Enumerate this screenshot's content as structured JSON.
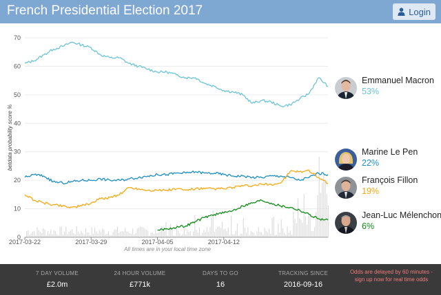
{
  "header": {
    "title": "French Presidential Election 2017",
    "login_label": "Login"
  },
  "chart_note": "All times are in your local time zone",
  "candidates": [
    {
      "name": "Emmanuel Macron",
      "pct": "53%",
      "color": "#6cc4d8",
      "photo": "macron-photo"
    },
    {
      "name": "Marine Le Pen",
      "pct": "22%",
      "color": "#1b8ec0",
      "photo": "le-pen-photo"
    },
    {
      "name": "François Fillon",
      "pct": "19%",
      "color": "#f5a911",
      "photo": "fillon-photo"
    },
    {
      "name": "Jean-Luc Mélenchon",
      "pct": "6%",
      "color": "#0f8a18",
      "photo": "melenchon-photo"
    }
  ],
  "stats": [
    {
      "label": "7 DAY VOLUME",
      "value": "£2.0m"
    },
    {
      "label": "24 HOUR VOLUME",
      "value": "£771k"
    },
    {
      "label": "DAYS TO GO",
      "value": "16"
    },
    {
      "label": "TRACKING SINCE",
      "value": "2016-09-16"
    }
  ],
  "delay_note": "Odds are delayed by 60 minutes - sign up now for real time odds",
  "chart_data": {
    "type": "line",
    "title": "",
    "ylabel": "betdata probability score %",
    "ylim": [
      0,
      70
    ],
    "yticks": [
      0,
      10,
      20,
      30,
      40,
      50,
      60,
      70
    ],
    "x_start": "2017-03-22",
    "x_end": "2017-04-23",
    "xticks": [
      "2017-03-22",
      "2017-03-29",
      "2017-04-05",
      "2017-04-12"
    ],
    "grid": true,
    "volume_bars": true,
    "series": [
      {
        "name": "Emmanuel Macron",
        "color": "#6cc4d8",
        "points": [
          [
            "2017-03-22",
            61
          ],
          [
            "2017-03-23",
            62
          ],
          [
            "2017-03-24",
            64
          ],
          [
            "2017-03-25",
            66
          ],
          [
            "2017-03-26",
            67
          ],
          [
            "2017-03-27",
            68.5
          ],
          [
            "2017-03-28",
            67.5
          ],
          [
            "2017-03-29",
            66.5
          ],
          [
            "2017-03-30",
            64
          ],
          [
            "2017-03-31",
            63
          ],
          [
            "2017-04-01",
            63
          ],
          [
            "2017-04-02",
            61
          ],
          [
            "2017-04-03",
            60
          ],
          [
            "2017-04-04",
            59
          ],
          [
            "2017-04-05",
            58
          ],
          [
            "2017-04-06",
            58
          ],
          [
            "2017-04-07",
            57
          ],
          [
            "2017-04-08",
            56
          ],
          [
            "2017-04-09",
            56
          ],
          [
            "2017-04-10",
            54
          ],
          [
            "2017-04-11",
            53
          ],
          [
            "2017-04-12",
            51.5
          ],
          [
            "2017-04-13",
            51
          ],
          [
            "2017-04-14",
            50
          ],
          [
            "2017-04-15",
            47
          ],
          [
            "2017-04-16",
            48
          ],
          [
            "2017-04-17",
            47.5
          ],
          [
            "2017-04-18",
            46
          ],
          [
            "2017-04-19",
            46.5
          ],
          [
            "2017-04-20",
            48.5
          ],
          [
            "2017-04-21",
            50.5
          ],
          [
            "2017-04-22",
            56
          ],
          [
            "2017-04-23",
            53
          ]
        ]
      },
      {
        "name": "Marine Le Pen",
        "color": "#1b8ec0",
        "points": [
          [
            "2017-03-22",
            21
          ],
          [
            "2017-03-23",
            22
          ],
          [
            "2017-03-24",
            21.5
          ],
          [
            "2017-03-25",
            19.5
          ],
          [
            "2017-03-26",
            19
          ],
          [
            "2017-03-27",
            19.5
          ],
          [
            "2017-03-28",
            20
          ],
          [
            "2017-03-29",
            20
          ],
          [
            "2017-03-30",
            20.5
          ],
          [
            "2017-03-31",
            20
          ],
          [
            "2017-04-01",
            20
          ],
          [
            "2017-04-02",
            20.5
          ],
          [
            "2017-04-03",
            21
          ],
          [
            "2017-04-04",
            21.5
          ],
          [
            "2017-04-05",
            22
          ],
          [
            "2017-04-06",
            22
          ],
          [
            "2017-04-07",
            22.5
          ],
          [
            "2017-04-08",
            22.5
          ],
          [
            "2017-04-09",
            23
          ],
          [
            "2017-04-10",
            22.5
          ],
          [
            "2017-04-11",
            22.5
          ],
          [
            "2017-04-12",
            22
          ],
          [
            "2017-04-13",
            21.5
          ],
          [
            "2017-04-14",
            21.5
          ],
          [
            "2017-04-15",
            21
          ],
          [
            "2017-04-16",
            21
          ],
          [
            "2017-04-17",
            21.5
          ],
          [
            "2017-04-18",
            21.5
          ],
          [
            "2017-04-19",
            21
          ],
          [
            "2017-04-20",
            20
          ],
          [
            "2017-04-21",
            21
          ],
          [
            "2017-04-22",
            22.5
          ],
          [
            "2017-04-23",
            22
          ]
        ]
      },
      {
        "name": "François Fillon",
        "color": "#f5a911",
        "points": [
          [
            "2017-03-22",
            15
          ],
          [
            "2017-03-23",
            13
          ],
          [
            "2017-03-24",
            12
          ],
          [
            "2017-03-25",
            11.5
          ],
          [
            "2017-03-26",
            11
          ],
          [
            "2017-03-27",
            10.5
          ],
          [
            "2017-03-28",
            11
          ],
          [
            "2017-03-29",
            12
          ],
          [
            "2017-03-30",
            13.5
          ],
          [
            "2017-03-31",
            14
          ],
          [
            "2017-04-01",
            15
          ],
          [
            "2017-04-02",
            17.5
          ],
          [
            "2017-04-03",
            17
          ],
          [
            "2017-04-04",
            16.5
          ],
          [
            "2017-04-05",
            16.5
          ],
          [
            "2017-04-06",
            16.5
          ],
          [
            "2017-04-07",
            17
          ],
          [
            "2017-04-08",
            16.5
          ],
          [
            "2017-04-09",
            17
          ],
          [
            "2017-04-10",
            17
          ],
          [
            "2017-04-11",
            17
          ],
          [
            "2017-04-12",
            17
          ],
          [
            "2017-04-13",
            17.5
          ],
          [
            "2017-04-14",
            18
          ],
          [
            "2017-04-15",
            18
          ],
          [
            "2017-04-16",
            18.5
          ],
          [
            "2017-04-17",
            18.5
          ],
          [
            "2017-04-18",
            19
          ],
          [
            "2017-04-19",
            23
          ],
          [
            "2017-04-20",
            23
          ],
          [
            "2017-04-21",
            23.5
          ],
          [
            "2017-04-22",
            21
          ],
          [
            "2017-04-23",
            19
          ]
        ]
      },
      {
        "name": "Jean-Luc Mélenchon",
        "color": "#0f8a18",
        "points": [
          [
            "2017-04-05",
            2.5
          ],
          [
            "2017-04-06",
            3
          ],
          [
            "2017-04-07",
            3.5
          ],
          [
            "2017-04-08",
            4
          ],
          [
            "2017-04-09",
            5.5
          ],
          [
            "2017-04-10",
            7
          ],
          [
            "2017-04-11",
            8
          ],
          [
            "2017-04-12",
            8.5
          ],
          [
            "2017-04-13",
            9.5
          ],
          [
            "2017-04-14",
            11
          ],
          [
            "2017-04-15",
            12
          ],
          [
            "2017-04-16",
            13
          ],
          [
            "2017-04-17",
            12
          ],
          [
            "2017-04-18",
            11
          ],
          [
            "2017-04-19",
            10.5
          ],
          [
            "2017-04-20",
            9.5
          ],
          [
            "2017-04-21",
            8
          ],
          [
            "2017-04-22",
            6.5
          ],
          [
            "2017-04-23",
            6
          ]
        ]
      }
    ]
  }
}
